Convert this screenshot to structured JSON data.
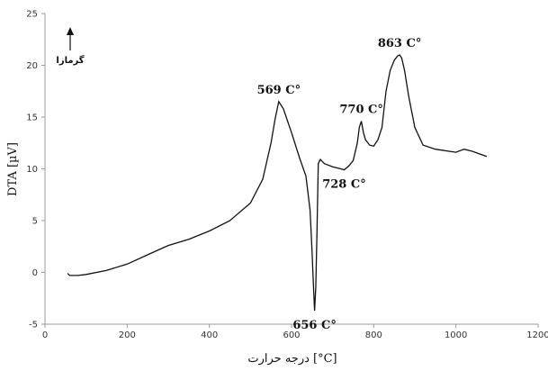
{
  "chart_data": {
    "type": "line",
    "title": "",
    "xlabel": "درجه حرارت [°C]",
    "ylabel": "DTA [µV]",
    "xlim": [
      0,
      1200
    ],
    "ylim": [
      -5,
      25
    ],
    "xticks": [
      0,
      200,
      400,
      600,
      800,
      1000,
      1200
    ],
    "yticks": [
      -5,
      0,
      5,
      10,
      15,
      20,
      25
    ],
    "grid": false,
    "exo_label": "گرمازا",
    "line_color": "#111111",
    "series": [
      {
        "x": [
          55,
          60,
          80,
          100,
          150,
          200,
          250,
          300,
          350,
          400,
          450,
          500,
          530,
          550,
          560,
          569,
          580,
          600,
          620,
          635,
          645,
          650,
          653,
          656,
          659,
          662,
          665,
          670,
          680,
          700,
          720,
          728,
          740,
          750,
          760,
          765,
          770,
          775,
          780,
          790,
          800,
          810,
          820,
          830,
          840,
          850,
          858,
          863,
          868,
          875,
          885,
          900,
          920,
          950,
          1000,
          1020,
          1040,
          1060,
          1075
        ],
        "y": [
          -0.1,
          -0.3,
          -0.3,
          -0.2,
          0.2,
          0.8,
          1.7,
          2.6,
          3.2,
          4.0,
          5.0,
          6.7,
          9.0,
          12.5,
          14.8,
          16.5,
          15.8,
          13.5,
          11.0,
          9.3,
          6.0,
          2.0,
          -1.0,
          -3.7,
          -1.5,
          4.0,
          10.5,
          10.9,
          10.5,
          10.2,
          10.0,
          9.9,
          10.3,
          10.8,
          12.5,
          14.0,
          14.6,
          13.5,
          12.8,
          12.3,
          12.2,
          12.8,
          14.0,
          17.5,
          19.5,
          20.5,
          20.9,
          21.0,
          20.7,
          19.5,
          17.0,
          14.0,
          12.3,
          11.9,
          11.6,
          11.9,
          11.7,
          11.4,
          11.2
        ]
      }
    ],
    "annotations": [
      {
        "label": "569 C°",
        "x": 569,
        "y": 16.5,
        "pos": "above"
      },
      {
        "label": "656 C°",
        "x": 656,
        "y": -3.7,
        "pos": "below"
      },
      {
        "label": "728 C°",
        "x": 728,
        "y": 9.9,
        "pos": "below"
      },
      {
        "label": "770 C°",
        "x": 770,
        "y": 14.6,
        "pos": "above"
      },
      {
        "label": "863 C°",
        "x": 863,
        "y": 21.0,
        "pos": "above"
      }
    ]
  }
}
